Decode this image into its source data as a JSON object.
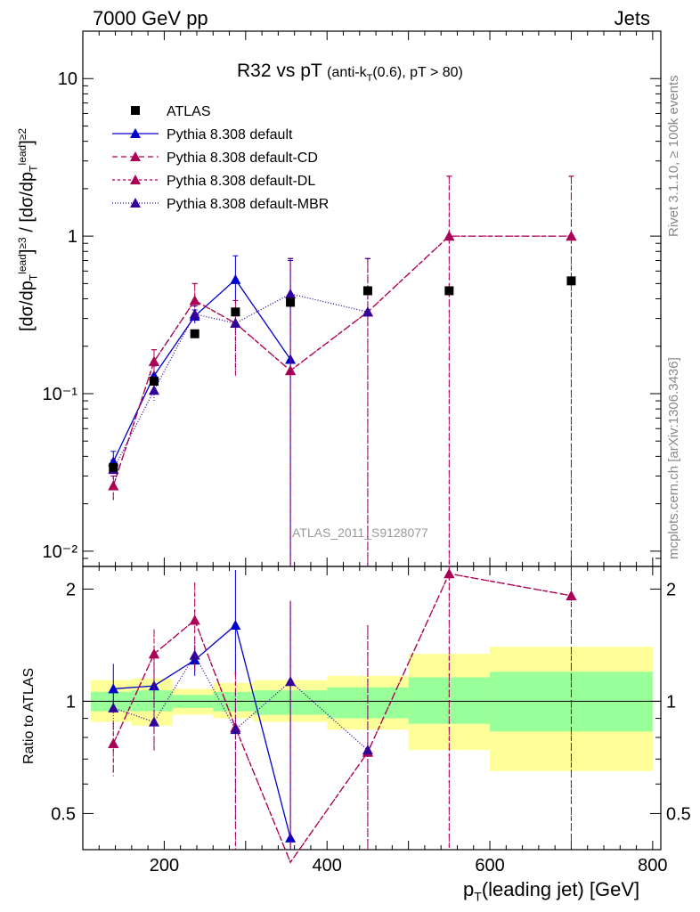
{
  "header": {
    "left": "7000 GeV pp",
    "right": "Jets"
  },
  "side_text": {
    "rivet": "Rivet 3.1.10, ≥ 100k events",
    "mcplots": "mcplots.cern.ch [arXiv:1306.3436]"
  },
  "chart_data": {
    "type": "scatter",
    "title_main": "R32 vs pT",
    "title_sub_pre": "(anti-k",
    "title_sub_sub": "T",
    "title_sub_post": "(0.6), pT > 80)",
    "analysis_id": "ATLAS_2011_S9128077",
    "xlabel_pre": "p",
    "xlabel_sub": "T",
    "xlabel_post": "(leading jet) [GeV]",
    "ylabel_main": "[dσ/dp_T^{lead}]^{≥3} / [dσ/dp_T^{lead}]^{≥2}",
    "ylabel_ratio": "Ratio to ATLAS",
    "xlim": [
      100,
      810
    ],
    "ylim_main": [
      0.008,
      20
    ],
    "ylim_ratio": [
      0.4,
      2.3
    ],
    "yscale_main": "log",
    "yscale_ratio": "log",
    "xticks": [
      200,
      400,
      600,
      800
    ],
    "yticks_main": [
      {
        "value": 0.01,
        "label": "10⁻²"
      },
      {
        "value": 0.1,
        "label": "10⁻¹"
      },
      {
        "value": 1,
        "label": "1"
      },
      {
        "value": 10,
        "label": "10"
      }
    ],
    "yticks_ratio": [
      {
        "value": 0.5,
        "label": "0.5"
      },
      {
        "value": 1,
        "label": "1"
      },
      {
        "value": 2,
        "label": "2"
      }
    ],
    "legend_position": "top-left",
    "data": {
      "name": "ATLAS",
      "color": "#000000",
      "x": [
        137.5,
        187.5,
        237.5,
        287.5,
        355,
        450,
        550,
        700
      ],
      "y": [
        0.034,
        0.12,
        0.24,
        0.33,
        0.38,
        0.45,
        0.45,
        0.52
      ],
      "bins": [
        [
          110,
          160
        ],
        [
          160,
          210
        ],
        [
          210,
          260
        ],
        [
          260,
          310
        ],
        [
          310,
          400
        ],
        [
          400,
          500
        ],
        [
          500,
          600
        ],
        [
          600,
          800
        ]
      ],
      "band_green": [
        [
          0.94,
          1.06
        ],
        [
          0.94,
          1.07
        ],
        [
          0.96,
          1.04
        ],
        [
          0.94,
          1.06
        ],
        [
          0.92,
          1.07
        ],
        [
          0.9,
          1.09
        ],
        [
          0.87,
          1.16
        ],
        [
          0.83,
          1.2
        ]
      ],
      "band_yellow": [
        [
          0.88,
          1.14
        ],
        [
          0.86,
          1.15
        ],
        [
          0.92,
          1.08
        ],
        [
          0.9,
          1.12
        ],
        [
          0.88,
          1.14
        ],
        [
          0.84,
          1.17
        ],
        [
          0.74,
          1.34
        ],
        [
          0.65,
          1.4
        ]
      ]
    },
    "series": [
      {
        "name": "Pythia 8.308 default",
        "color": "#0000cc",
        "dash": "",
        "x": [
          137.5,
          187.5,
          237.5,
          287.5,
          355,
          450
        ],
        "y": [
          0.037,
          0.13,
          0.31,
          0.53,
          0.165,
          0.0
        ],
        "err_hi": [
          0.043,
          0.15,
          0.34,
          0.75,
          0.7,
          0.0
        ],
        "err_lo": [
          0.032,
          0.11,
          0.28,
          0.38,
          0.0001,
          0.0
        ],
        "ratio": [
          1.08,
          1.1,
          1.29,
          1.6,
          0.43
        ],
        "ratio_hi": [
          1.26,
          1.27,
          1.41,
          2.25,
          1.84
        ],
        "ratio_lo": [
          0.94,
          0.96,
          1.17,
          1.17,
          0.001
        ]
      },
      {
        "name": "Pythia 8.308 default-CD",
        "color": "#aa0055",
        "dash": "6,4",
        "x": [
          137.5,
          187.5,
          237.5,
          287.5,
          355,
          450,
          550,
          700
        ],
        "y": [
          0.026,
          0.16,
          0.39,
          0.28,
          0.14,
          0.33,
          1.0,
          1.0
        ],
        "err_hi": [
          0.03,
          0.19,
          0.5,
          0.39,
          0.72,
          0.72,
          2.4,
          2.4
        ],
        "err_lo": [
          0.021,
          0.13,
          0.29,
          0.13,
          0.0001,
          0.0001,
          0.0001,
          0.0001
        ],
        "ratio": [
          0.77,
          1.34,
          1.65,
          0.85,
          0.37,
          0.73,
          2.2,
          1.92
        ],
        "ratio_hi": [
          0.88,
          1.56,
          2.08,
          1.2,
          1.86,
          1.6,
          5.0,
          5.0
        ],
        "ratio_lo": [
          0.63,
          0.73,
          1.2,
          0.37,
          0.001,
          0.001,
          0.001,
          0.001
        ]
      },
      {
        "name": "Pythia 8.308 default-DL",
        "color": "#aa0055",
        "dash": "3,3",
        "x": [
          137.5,
          187.5,
          237.5,
          287.5,
          355,
          450,
          550,
          700
        ],
        "y": [
          0.026,
          0.16,
          0.39,
          0.28,
          0.14,
          0.33,
          1.0,
          1.0
        ],
        "err_hi": [
          0.03,
          0.19,
          0.5,
          0.39,
          0.72,
          0.72,
          2.4,
          2.4
        ],
        "err_lo": [
          0.021,
          0.13,
          0.29,
          0.13,
          0.0001,
          0.0001,
          0.0001,
          0.0001
        ],
        "ratio": [
          0.77,
          1.34,
          1.65,
          0.85,
          0.37,
          0.73,
          2.2,
          1.92
        ],
        "ratio_hi": [
          0.88,
          1.56,
          2.08,
          1.2,
          1.86,
          1.6,
          5.0,
          5.0
        ],
        "ratio_lo": [
          0.63,
          0.73,
          1.2,
          0.37,
          0.001,
          0.001,
          0.001,
          0.001
        ]
      },
      {
        "name": "Pythia 8.308 default-MBR",
        "color": "#330099",
        "dash": "1,2",
        "x": [
          137.5,
          187.5,
          237.5,
          287.5,
          355,
          450
        ],
        "y": [
          0.033,
          0.105,
          0.32,
          0.28,
          0.43,
          0.33
        ],
        "err_hi": [
          0.038,
          0.12,
          0.36,
          0.34,
          0.72,
          0.72
        ],
        "err_lo": [
          0.028,
          0.09,
          0.28,
          0.14,
          0.0001,
          0.0001
        ],
        "ratio": [
          0.96,
          0.88,
          1.33,
          0.84,
          1.13,
          0.74
        ],
        "ratio_hi": [
          1.1,
          1.0,
          1.46,
          1.05,
          1.84,
          1.6
        ],
        "ratio_lo": [
          0.84,
          0.74,
          1.2,
          0.47,
          0.001,
          0.001
        ]
      }
    ]
  }
}
